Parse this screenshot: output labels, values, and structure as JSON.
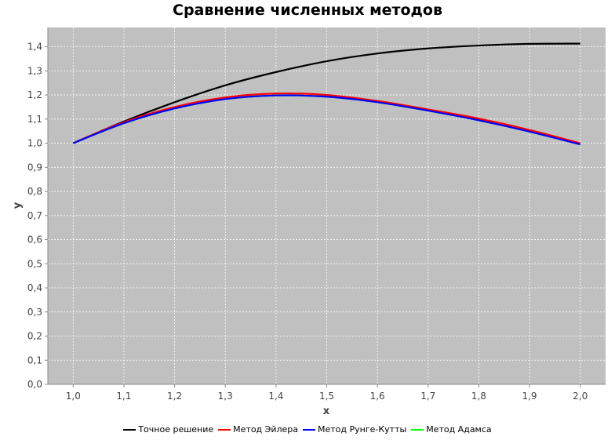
{
  "chart_data": {
    "type": "line",
    "title": "Сравнение численных методов",
    "xlabel": "x",
    "ylabel": "y",
    "xlim": [
      0.95,
      2.05
    ],
    "ylim": [
      0.0,
      1.48
    ],
    "x_ticks": [
      "1,0",
      "1,1",
      "1,2",
      "1,3",
      "1,4",
      "1,5",
      "1,6",
      "1,7",
      "1,8",
      "1,9",
      "2,0"
    ],
    "y_ticks": [
      "0,0",
      "0,1",
      "0,2",
      "0,3",
      "0,4",
      "0,5",
      "0,6",
      "0,7",
      "0,8",
      "0,9",
      "1,0",
      "1,1",
      "1,2",
      "1,3",
      "1,4"
    ],
    "grid": true,
    "plot_background": "#c0c0c0",
    "legend_position": "bottom",
    "x": [
      1.0,
      1.1,
      1.2,
      1.3,
      1.4,
      1.5,
      1.6,
      1.7,
      1.8,
      1.9,
      2.0
    ],
    "series": [
      {
        "name": "Точное решение",
        "color": "#000000",
        "values": [
          1.0,
          1.09,
          1.17,
          1.24,
          1.295,
          1.34,
          1.372,
          1.393,
          1.405,
          1.412,
          1.413
        ]
      },
      {
        "name": "Метод Эйлера",
        "color": "#ff0000",
        "values": [
          1.0,
          1.087,
          1.15,
          1.19,
          1.206,
          1.2,
          1.175,
          1.14,
          1.102,
          1.055,
          1.0
        ]
      },
      {
        "name": "Метод Рунге-Кутты",
        "color": "#0000ff",
        "values": [
          1.0,
          1.083,
          1.144,
          1.183,
          1.198,
          1.193,
          1.17,
          1.135,
          1.095,
          1.048,
          0.995
        ]
      },
      {
        "name": "Метод Адамса",
        "color": "#00ff00",
        "values": [
          1.0,
          1.083,
          1.144,
          1.183,
          1.198,
          1.193,
          1.17,
          1.135,
          1.095,
          1.048,
          0.995
        ]
      }
    ]
  }
}
